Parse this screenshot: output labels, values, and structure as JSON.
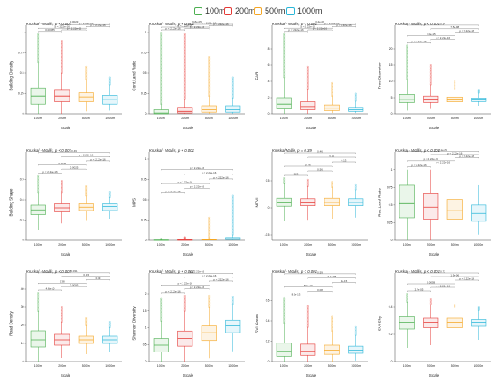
{
  "legend": {
    "items": [
      {
        "label": "100m",
        "color": "#4caf50"
      },
      {
        "label": "200m",
        "color": "#e53935"
      },
      {
        "label": "500m",
        "color": "#f5a623"
      },
      {
        "label": "1000m",
        "color": "#29b6d8"
      }
    ]
  },
  "chart_data": [
    {
      "type": "box",
      "ylabel": "Building Density",
      "xlabel": "Scale",
      "stat": "Kruskal - Wallis, p < 0.001",
      "categories": [
        "100m",
        "200m",
        "500m",
        "1000m"
      ],
      "ylim": [
        0,
        1
      ],
      "yticks": [
        0,
        0.25,
        0.5,
        0.75,
        1
      ],
      "boxes": [
        {
          "min": 0,
          "q1": 0.12,
          "median": 0.22,
          "q3": 0.32,
          "max": 0.63,
          "outlier_max": 0.98
        },
        {
          "min": 0,
          "q1": 0.15,
          "median": 0.22,
          "q3": 0.29,
          "max": 0.5,
          "outlier_max": 0.9
        },
        {
          "min": 0.03,
          "q1": 0.15,
          "median": 0.21,
          "q3": 0.26,
          "max": 0.42,
          "outlier_max": 0.58
        },
        {
          "min": 0.04,
          "q1": 0.12,
          "median": 0.18,
          "q3": 0.23,
          "max": 0.36,
          "outlier_max": 0.45
        }
      ],
      "pvalues": [
        "0.00085",
        "p < 2.22e-16",
        "p < 2.22e-16",
        "p < 2.22e-16",
        "p < 2.22e-16",
        "0.0023"
      ]
    },
    {
      "type": "box",
      "ylabel": "Cont.Land Ratio",
      "xlabel": "Scale",
      "stat": "Kruskal - Wallis, p < 0.001",
      "categories": [
        "100m",
        "200m",
        "500m",
        "1000m"
      ],
      "ylim": [
        0,
        1
      ],
      "yticks": [
        0,
        0.25,
        0.5,
        0.75,
        1
      ],
      "boxes": [
        {
          "min": 0,
          "q1": 0,
          "median": 0.01,
          "q3": 0.05,
          "max": 0.12,
          "outlier_max": 1.0
        },
        {
          "min": 0,
          "q1": 0.01,
          "median": 0.03,
          "q3": 0.08,
          "max": 0.18,
          "outlier_max": 0.98
        },
        {
          "min": 0,
          "q1": 0.02,
          "median": 0.05,
          "q3": 0.1,
          "max": 0.22,
          "outlier_max": 0.7
        },
        {
          "min": 0,
          "q1": 0.02,
          "median": 0.05,
          "q3": 0.1,
          "max": 0.2,
          "outlier_max": 0.45
        }
      ],
      "pvalues": [
        "p < 2.22e-16",
        "p < 2.22e-16",
        "p < 2.22e-16",
        "p < 2.22e-16",
        "p < 2.22e-16",
        "9.8e-05"
      ]
    },
    {
      "type": "box",
      "ylabel": "FAR",
      "xlabel": "Scale",
      "stat": "Kruskal - Wallis, p < 0.001",
      "categories": [
        "100m",
        "200m",
        "500m",
        "1000m"
      ],
      "ylim": [
        0,
        10
      ],
      "yticks": [
        0,
        2,
        4,
        6,
        8
      ],
      "boxes": [
        {
          "min": 0,
          "q1": 0.6,
          "median": 1.2,
          "q3": 2.0,
          "max": 4.5,
          "outlier_max": 9.8
        },
        {
          "min": 0,
          "q1": 0.5,
          "median": 0.9,
          "q3": 1.5,
          "max": 3.0,
          "outlier_max": 5.8
        },
        {
          "min": 0.1,
          "q1": 0.4,
          "median": 0.7,
          "q3": 1.1,
          "max": 2.2,
          "outlier_max": 3.8
        },
        {
          "min": 0.1,
          "q1": 0.3,
          "median": 0.5,
          "q3": 0.8,
          "max": 1.6,
          "outlier_max": 2.5
        }
      ],
      "pvalues": [
        "p < 2.22e-16",
        "p < 2.22e-16",
        "p < 2.22e-16",
        "p < 2.22e-16",
        "p < 2.22e-16",
        "3.4e-06"
      ]
    },
    {
      "type": "box",
      "ylabel": "Tree Diameter",
      "xlabel": "Scale",
      "stat": "Kruskal - Wallis, p < 0.001",
      "categories": [
        "100m",
        "200m",
        "500m",
        "1000m"
      ],
      "ylim": [
        0,
        25
      ],
      "yticks": [
        0,
        5,
        10,
        15,
        20
      ],
      "boxes": [
        {
          "min": 1,
          "q1": 3.5,
          "median": 4.5,
          "q3": 6.0,
          "max": 10.5,
          "outlier_max": 21
        },
        {
          "min": 1.5,
          "q1": 3.5,
          "median": 4.3,
          "q3": 5.5,
          "max": 9.0,
          "outlier_max": 15
        },
        {
          "min": 2,
          "q1": 3.7,
          "median": 4.3,
          "q3": 5.2,
          "max": 7.5,
          "outlier_max": 10
        },
        {
          "min": 2.5,
          "q1": 3.8,
          "median": 4.3,
          "q3": 4.9,
          "max": 6.5,
          "outlier_max": 7.2
        }
      ],
      "pvalues": [
        "p < 2.22e-16",
        "p < 2.22e-16",
        "3.4e-15",
        "p < 2.22e-16",
        "7.5e-08",
        "0.34"
      ]
    },
    {
      "type": "box",
      "ylabel": "Building Shape",
      "xlabel": "Scale",
      "stat": "Kruskal - Wallis, p < 0.001",
      "categories": [
        "100m",
        "200m",
        "500m",
        "1000m"
      ],
      "ylim": [
        0,
        1.2
      ],
      "yticks": [
        0,
        0.3,
        0.6,
        0.9
      ],
      "boxes": [
        {
          "min": 0.15,
          "q1": 0.38,
          "median": 0.45,
          "q3": 0.52,
          "max": 0.7,
          "outlier_max": 0.95
        },
        {
          "min": 0.25,
          "q1": 0.42,
          "median": 0.48,
          "q3": 0.54,
          "max": 0.7,
          "outlier_max": 0.88
        },
        {
          "min": 0.3,
          "q1": 0.44,
          "median": 0.49,
          "q3": 0.54,
          "max": 0.66,
          "outlier_max": 0.8
        },
        {
          "min": 0.32,
          "q1": 0.44,
          "median": 0.5,
          "q3": 0.54,
          "max": 0.64,
          "outlier_max": 0.72
        }
      ],
      "pvalues": [
        "p < 2.22e-16",
        "0.0025",
        "0.0046",
        "p < 2.22e-16",
        "p < 2.22e-16",
        "0.49"
      ]
    },
    {
      "type": "box",
      "ylabel": "MPS",
      "xlabel": "Scale",
      "stat": "Kruskal - Wallis, p < 0.001",
      "categories": [
        "100m",
        "200m",
        "500m",
        "1000m"
      ],
      "ylim": [
        0,
        1
      ],
      "yticks": [
        0,
        0.25,
        0.5,
        0.75,
        1
      ],
      "boxes": [
        {
          "min": 0,
          "q1": 0,
          "median": 0,
          "q3": 0.005,
          "max": 0.01,
          "outlier_max": 0.02
        },
        {
          "min": 0,
          "q1": 0,
          "median": 0.003,
          "q3": 0.01,
          "max": 0.02,
          "outlier_max": 0.04
        },
        {
          "min": 0,
          "q1": 0.003,
          "median": 0.008,
          "q3": 0.015,
          "max": 0.03,
          "outlier_max": 0.28
        },
        {
          "min": 0,
          "q1": 0.01,
          "median": 0.02,
          "q3": 0.035,
          "max": 0.07,
          "outlier_max": 0.55
        }
      ],
      "pvalues": [
        "p < 2.22e-16",
        "p < 2.22e-16",
        "p < 2.22e-16",
        "p < 2.22e-16",
        "p < 2.22e-16",
        "p < 2.22e-16"
      ]
    },
    {
      "type": "box",
      "ylabel": "NDVI",
      "xlabel": "Scale",
      "stat": "KruskalWallis, p = 0.39",
      "categories": [
        "100m",
        "200m",
        "500m",
        "1000m"
      ],
      "ylim": [
        -0.6,
        0.9
      ],
      "yticks": [
        -0.5,
        0,
        0.5
      ],
      "boxes": [
        {
          "min": -0.25,
          "q1": 0.03,
          "median": 0.09,
          "q3": 0.18,
          "max": 0.45,
          "outlier_max": 0.55
        },
        {
          "min": -0.22,
          "q1": 0.04,
          "median": 0.09,
          "q3": 0.17,
          "max": 0.4,
          "outlier_max": 0.52
        },
        {
          "min": -0.2,
          "q1": 0.04,
          "median": 0.1,
          "q3": 0.18,
          "max": 0.38,
          "outlier_max": 0.48
        },
        {
          "min": -0.18,
          "q1": 0.04,
          "median": 0.1,
          "q3": 0.17,
          "max": 0.34,
          "outlier_max": 0.42
        }
      ],
      "pvalues": [
        "0.23",
        "0.56",
        "0.76",
        "0.13",
        "0.52",
        "0.46"
      ]
    },
    {
      "type": "box",
      "ylabel": "Res.Land Ratio",
      "xlabel": "Scale",
      "stat": "Kruskal - Wallis, p < 0.001",
      "categories": [
        "100m",
        "200m",
        "500m",
        "1000m"
      ],
      "ylim": [
        0,
        1.15
      ],
      "yticks": [
        0,
        0.25,
        0.5,
        0.75,
        1
      ],
      "boxes": [
        {
          "min": 0,
          "q1": 0.32,
          "median": 0.52,
          "q3": 0.78,
          "max": 1.0
        },
        {
          "min": 0,
          "q1": 0.3,
          "median": 0.47,
          "q3": 0.66,
          "max": 1.0
        },
        {
          "min": 0.05,
          "q1": 0.3,
          "median": 0.42,
          "q3": 0.58,
          "max": 0.9
        },
        {
          "min": 0.08,
          "q1": 0.27,
          "median": 0.38,
          "q3": 0.5,
          "max": 0.78
        }
      ],
      "pvalues": [
        "p < 2.22e-16",
        "p < 2.22e-16",
        "p < 2.22e-16",
        "p < 2.22e-16",
        "p < 2.22e-16",
        "2.1e-05"
      ]
    },
    {
      "type": "box",
      "ylabel": "Road Density",
      "xlabel": "Scale",
      "stat": "Kruskal - Wallis, p < 0.001",
      "categories": [
        "100m",
        "200m",
        "500m",
        "1000m"
      ],
      "ylim": [
        0,
        45
      ],
      "yticks": [
        0,
        10,
        20,
        30,
        40
      ],
      "boxes": [
        {
          "min": 0,
          "q1": 8,
          "median": 12,
          "q3": 17,
          "max": 28,
          "outlier_max": 38
        },
        {
          "min": 2,
          "q1": 9,
          "median": 12,
          "q3": 15,
          "max": 22,
          "outlier_max": 30
        },
        {
          "min": 4,
          "q1": 10,
          "median": 12,
          "q3": 14,
          "max": 20,
          "outlier_max": 24
        },
        {
          "min": 5,
          "q1": 10,
          "median": 12,
          "q3": 14,
          "max": 19,
          "outlier_max": 22
        }
      ],
      "pvalues": [
        "4.6e-10",
        "0.0095",
        "0.38",
        "0.59",
        "0.15",
        "0.031"
      ]
    },
    {
      "type": "box",
      "ylabel": "Shannon Diversity",
      "xlabel": "Scale",
      "stat": "Kruskal - Wallis, p < 0.001",
      "categories": [
        "100m",
        "200m",
        "500m",
        "1000m"
      ],
      "ylim": [
        0,
        2.4
      ],
      "yticks": [
        0,
        0.5,
        1,
        1.5,
        2
      ],
      "boxes": [
        {
          "min": 0,
          "q1": 0.28,
          "median": 0.48,
          "q3": 0.68,
          "max": 1.2,
          "outlier_max": 1.85
        },
        {
          "min": 0,
          "q1": 0.45,
          "median": 0.68,
          "q3": 0.9,
          "max": 1.5,
          "outlier_max": 1.95
        },
        {
          "min": 0.1,
          "q1": 0.62,
          "median": 0.85,
          "q3": 1.05,
          "max": 1.6,
          "outlier_max": 1.95
        },
        {
          "min": 0.3,
          "q1": 0.85,
          "median": 1.05,
          "q3": 1.22,
          "max": 1.7,
          "outlier_max": 1.9
        }
      ],
      "pvalues": [
        "p < 2.22e-16",
        "p < 2.22e-16",
        "p < 2.22e-16",
        "p < 2.22e-16",
        "p < 2.22e-16",
        "p < 2.22e-16"
      ]
    },
    {
      "type": "box",
      "ylabel": "SVI Green",
      "xlabel": "Scale",
      "stat": "Kruskal - Wallis, p < 0.001",
      "categories": [
        "100m",
        "200m",
        "500m",
        "1000m"
      ],
      "ylim": [
        0,
        0.8
      ],
      "yticks": [
        0,
        0.2,
        0.4,
        0.6
      ],
      "boxes": [
        {
          "min": 0,
          "q1": 0.05,
          "median": 0.1,
          "q3": 0.18,
          "max": 0.38,
          "outlier_max": 0.62
        },
        {
          "min": 0,
          "q1": 0.06,
          "median": 0.1,
          "q3": 0.17,
          "max": 0.34,
          "outlier_max": 0.55
        },
        {
          "min": 0,
          "q1": 0.07,
          "median": 0.11,
          "q3": 0.16,
          "max": 0.3,
          "outlier_max": 0.44
        },
        {
          "min": 0.01,
          "q1": 0.08,
          "median": 0.11,
          "q3": 0.15,
          "max": 0.26,
          "outlier_max": 0.34
        }
      ],
      "pvalues": [
        "8.1e-13",
        "0.08",
        "8.6e-10",
        "1e-15",
        "7.1e-08",
        "0.59"
      ]
    },
    {
      "type": "box",
      "ylabel": "SVI Sky",
      "xlabel": "Scale",
      "stat": "Kruskal - Wallis, p < 0.001",
      "categories": [
        "100m",
        "200m",
        "500m",
        "1000m"
      ],
      "ylim": [
        0,
        0.6
      ],
      "yticks": [
        0,
        0.2,
        0.4
      ],
      "boxes": [
        {
          "min": 0.1,
          "q1": 0.24,
          "median": 0.29,
          "q3": 0.33,
          "max": 0.44,
          "outlier_max": 0.5
        },
        {
          "min": 0.12,
          "q1": 0.25,
          "median": 0.29,
          "q3": 0.32,
          "max": 0.42,
          "outlier_max": 0.46
        },
        {
          "min": 0.14,
          "q1": 0.25,
          "median": 0.29,
          "q3": 0.32,
          "max": 0.4,
          "outlier_max": 0.42
        },
        {
          "min": 0.16,
          "q1": 0.26,
          "median": 0.29,
          "q3": 0.31,
          "max": 0.38,
          "outlier_max": 0.4
        }
      ],
      "pvalues": [
        "2.7e-05",
        "p < 2.22e-16",
        "0.0059",
        "p < 2.22e-16",
        "1.9e-06",
        "0.72"
      ]
    }
  ]
}
